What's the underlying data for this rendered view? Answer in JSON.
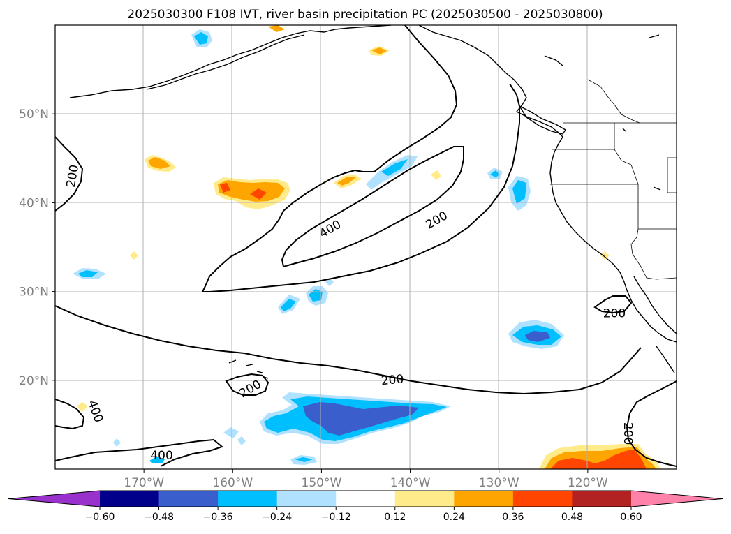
{
  "chart_data": {
    "type": "map-contour",
    "title": "2025030300 F108 IVT, river basin precipitation PC (2025030500 - 2025030800)",
    "x_ticks": [
      "170°W",
      "160°W",
      "150°W",
      "140°W",
      "130°W",
      "120°W"
    ],
    "x_tick_values": [
      -170,
      -160,
      -150,
      -140,
      -130,
      -120
    ],
    "y_ticks": [
      "20°N",
      "30°N",
      "40°N",
      "50°N"
    ],
    "y_tick_values": [
      20,
      30,
      40,
      50
    ],
    "lon_range": [
      -180,
      -110
    ],
    "lat_range": [
      10,
      60
    ],
    "grid": true,
    "ivt_contour_labels": [
      {
        "text": "200",
        "lon": -178,
        "lat": 43,
        "rot": -80
      },
      {
        "text": "400",
        "lon": -149,
        "lat": 37,
        "rot": -30
      },
      {
        "text": "200",
        "lon": -137,
        "lat": 38,
        "rot": -30
      },
      {
        "text": "200",
        "lon": -117,
        "lat": 27.5,
        "rot": 0
      },
      {
        "text": "200",
        "lon": -142,
        "lat": 20,
        "rot": -5
      },
      {
        "text": "200",
        "lon": -158,
        "lat": 19,
        "rot": -30
      },
      {
        "text": "400",
        "lon": -175.5,
        "lat": 16.5,
        "rot": 70
      },
      {
        "text": "400",
        "lon": -168,
        "lat": 11.5,
        "rot": 0
      },
      {
        "text": "200",
        "lon": -115.5,
        "lat": 14,
        "rot": 90
      }
    ],
    "colorbar": {
      "ticks": [
        "−0.60",
        "−0.48",
        "−0.36",
        "−0.24",
        "−0.12",
        "0.12",
        "0.24",
        "0.36",
        "0.48",
        "0.60"
      ],
      "bounds": [
        -0.6,
        -0.48,
        -0.36,
        -0.24,
        -0.12,
        0.12,
        0.24,
        0.36,
        0.48,
        0.6
      ],
      "colors": [
        "#9932cc",
        "#00008b",
        "#3a5fcd",
        "#00bfff",
        "#b0e2ff",
        "#ffffff",
        "#ffeb8a",
        "#ffa500",
        "#ff4500",
        "#b22222",
        "#ff82ab"
      ],
      "extend": "both"
    }
  }
}
